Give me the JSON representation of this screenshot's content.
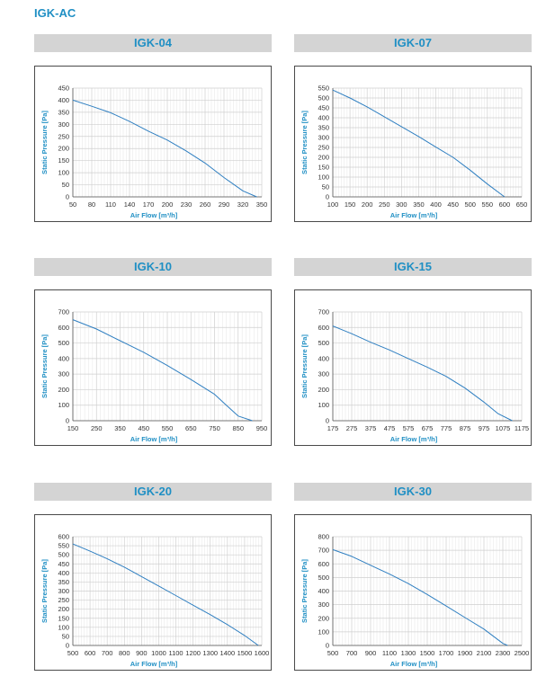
{
  "page": {
    "title": "IGK-AC"
  },
  "colors": {
    "accent": "#1f8fc4",
    "header_bg": "#d4d4d4",
    "curve": "#2f7fc1",
    "grid": "#cfcfcf"
  },
  "chart_data": [
    {
      "type": "line",
      "title": "IGK-04",
      "xlabel": "Air Flow [m³/h]",
      "ylabel": "Static Pressure [Pa]",
      "x_ticks": [
        50,
        80,
        110,
        140,
        170,
        200,
        230,
        260,
        290,
        320,
        350
      ],
      "xlim": [
        50,
        350
      ],
      "y_ticks": [
        0,
        50,
        100,
        150,
        200,
        250,
        300,
        350,
        400,
        450
      ],
      "ylim": [
        0,
        450
      ],
      "grid": true,
      "series": [
        {
          "x": [
            50,
            80,
            110,
            140,
            170,
            200,
            230,
            260,
            290,
            320,
            342
          ],
          "y": [
            400,
            375,
            348,
            312,
            272,
            235,
            190,
            140,
            80,
            25,
            0
          ]
        }
      ]
    },
    {
      "type": "line",
      "title": "IGK-07",
      "xlabel": "Air Flow [m³/h]",
      "ylabel": "Static Pressure [Pa]",
      "x_ticks": [
        100,
        150,
        200,
        250,
        300,
        350,
        400,
        450,
        500,
        550,
        600,
        650
      ],
      "xlim": [
        100,
        650
      ],
      "y_ticks": [
        0,
        50,
        100,
        150,
        200,
        250,
        300,
        350,
        400,
        450,
        500,
        550
      ],
      "ylim": [
        0,
        550
      ],
      "grid": true,
      "series": [
        {
          "x": [
            100,
            150,
            200,
            250,
            300,
            350,
            400,
            450,
            500,
            550,
            600
          ],
          "y": [
            540,
            500,
            455,
            405,
            355,
            305,
            252,
            200,
            135,
            65,
            0
          ]
        }
      ]
    },
    {
      "type": "line",
      "title": "IGK-10",
      "xlabel": "Air Flow [m³/h]",
      "ylabel": "Static Pressure [Pa]",
      "x_ticks": [
        150,
        250,
        350,
        450,
        550,
        650,
        750,
        850,
        950
      ],
      "xlim": [
        150,
        950
      ],
      "y_ticks": [
        0,
        100,
        200,
        300,
        400,
        500,
        600,
        700
      ],
      "ylim": [
        0,
        700
      ],
      "grid": true,
      "series": [
        {
          "x": [
            150,
            250,
            350,
            450,
            550,
            650,
            750,
            800,
            850,
            910
          ],
          "y": [
            650,
            590,
            515,
            440,
            355,
            265,
            170,
            100,
            30,
            0
          ]
        }
      ]
    },
    {
      "type": "line",
      "title": "IGK-15",
      "xlabel": "Air Flow [m³/h]",
      "ylabel": "Static Pressure [Pa]",
      "x_ticks": [
        175,
        275,
        375,
        475,
        575,
        675,
        775,
        875,
        975,
        1075,
        1175
      ],
      "xlim": [
        175,
        1175
      ],
      "y_ticks": [
        0,
        100,
        200,
        300,
        400,
        500,
        600,
        700
      ],
      "ylim": [
        0,
        700
      ],
      "grid": true,
      "series": [
        {
          "x": [
            175,
            275,
            375,
            475,
            575,
            675,
            775,
            875,
            975,
            1050,
            1125
          ],
          "y": [
            610,
            560,
            505,
            455,
            400,
            345,
            285,
            210,
            120,
            45,
            0
          ]
        }
      ]
    },
    {
      "type": "line",
      "title": "IGK-20",
      "xlabel": "Air Flow [m³/h]",
      "ylabel": "Static Pressure [Pa]",
      "x_ticks": [
        500,
        600,
        700,
        800,
        900,
        1000,
        1100,
        1200,
        1300,
        1400,
        1500,
        1600
      ],
      "xlim": [
        500,
        1600
      ],
      "y_ticks": [
        0,
        50,
        100,
        150,
        200,
        250,
        300,
        350,
        400,
        450,
        500,
        550,
        600
      ],
      "ylim": [
        0,
        600
      ],
      "grid": true,
      "series": [
        {
          "x": [
            500,
            600,
            700,
            800,
            900,
            1000,
            1100,
            1200,
            1300,
            1400,
            1500,
            1580
          ],
          "y": [
            560,
            520,
            478,
            432,
            380,
            328,
            275,
            222,
            170,
            115,
            55,
            0
          ]
        }
      ]
    },
    {
      "type": "line",
      "title": "IGK-30",
      "xlabel": "Air Flow [m³/h]",
      "ylabel": "Static Pressure [Pa]",
      "x_ticks": [
        500,
        700,
        900,
        1100,
        1300,
        1500,
        1700,
        1900,
        2100,
        2300,
        2500
      ],
      "xlim": [
        500,
        2500
      ],
      "y_ticks": [
        0,
        100,
        200,
        300,
        400,
        500,
        600,
        700,
        800
      ],
      "ylim": [
        0,
        800
      ],
      "grid": true,
      "series": [
        {
          "x": [
            500,
            700,
            900,
            1100,
            1300,
            1500,
            1700,
            1900,
            2100,
            2300,
            2350
          ],
          "y": [
            705,
            655,
            590,
            525,
            455,
            375,
            290,
            205,
            120,
            15,
            0
          ]
        }
      ]
    }
  ]
}
